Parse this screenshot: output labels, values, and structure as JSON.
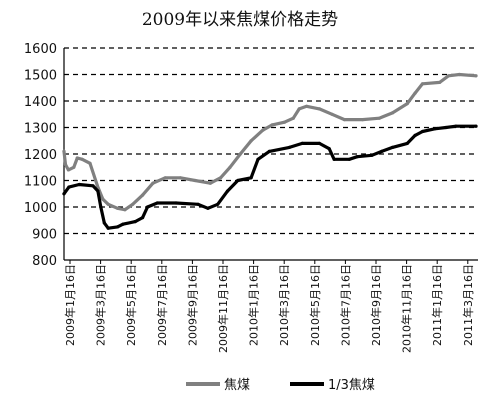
{
  "chart_data": {
    "type": "line",
    "title": "2009年以来焦煤价格走势",
    "ylim": [
      800,
      1600
    ],
    "yticks": [
      800,
      900,
      1000,
      1100,
      1200,
      1300,
      1400,
      1500,
      1600
    ],
    "grid": "horizontal-dashed",
    "legend_position": "bottom",
    "x_tick_labels": [
      "2009年1月16日",
      "2009年3月16日",
      "2009年5月16日",
      "2009年7月16日",
      "2009年9月16日",
      "2009年11月16日",
      "2010年1月16日",
      "2010年3月16日",
      "2010年5月16日",
      "2010年7月16日",
      "2010年9月16日",
      "2010年11月16日",
      "2011年1月16日",
      "2011年3月16日"
    ],
    "series": [
      {
        "name": "焦煤",
        "color": "#808080",
        "points": [
          [
            "2009-01-16",
            1210
          ],
          [
            "2009-01-19",
            1160
          ],
          [
            "2009-01-25",
            1140
          ],
          [
            "2009-02-05",
            1150
          ],
          [
            "2009-02-12",
            1185
          ],
          [
            "2009-02-22",
            1180
          ],
          [
            "2009-03-10",
            1165
          ],
          [
            "2009-03-25",
            1080
          ],
          [
            "2009-04-05",
            1030
          ],
          [
            "2009-04-16",
            1010
          ],
          [
            "2009-05-05",
            995
          ],
          [
            "2009-05-20",
            990
          ],
          [
            "2009-06-05",
            1010
          ],
          [
            "2009-06-25",
            1045
          ],
          [
            "2009-07-16",
            1090
          ],
          [
            "2009-08-10",
            1110
          ],
          [
            "2009-09-10",
            1110
          ],
          [
            "2009-10-10",
            1100
          ],
          [
            "2009-11-10",
            1090
          ],
          [
            "2009-12-01",
            1110
          ],
          [
            "2009-12-20",
            1150
          ],
          [
            "2010-01-10",
            1200
          ],
          [
            "2010-02-01",
            1250
          ],
          [
            "2010-02-25",
            1290
          ],
          [
            "2010-03-16",
            1310
          ],
          [
            "2010-04-10",
            1320
          ],
          [
            "2010-04-28",
            1335
          ],
          [
            "2010-05-10",
            1370
          ],
          [
            "2010-05-25",
            1380
          ],
          [
            "2010-06-20",
            1370
          ],
          [
            "2010-07-16",
            1350
          ],
          [
            "2010-08-10",
            1330
          ],
          [
            "2010-09-16",
            1330
          ],
          [
            "2010-10-20",
            1335
          ],
          [
            "2010-11-16",
            1355
          ],
          [
            "2010-12-16",
            1390
          ],
          [
            "2011-01-01",
            1430
          ],
          [
            "2011-01-16",
            1465
          ],
          [
            "2011-02-20",
            1470
          ],
          [
            "2011-03-10",
            1495
          ],
          [
            "2011-04-01",
            1500
          ],
          [
            "2011-05-05",
            1495
          ]
        ]
      },
      {
        "name": "1/3焦煤",
        "color": "#000000",
        "points": [
          [
            "2009-01-16",
            1050
          ],
          [
            "2009-01-26",
            1075
          ],
          [
            "2009-02-16",
            1085
          ],
          [
            "2009-03-16",
            1080
          ],
          [
            "2009-03-26",
            1060
          ],
          [
            "2009-04-01",
            1000
          ],
          [
            "2009-04-08",
            940
          ],
          [
            "2009-04-16",
            920
          ],
          [
            "2009-05-05",
            925
          ],
          [
            "2009-05-16",
            935
          ],
          [
            "2009-06-10",
            945
          ],
          [
            "2009-06-25",
            960
          ],
          [
            "2009-07-05",
            1000
          ],
          [
            "2009-07-25",
            1015
          ],
          [
            "2009-09-01",
            1015
          ],
          [
            "2009-10-16",
            1010
          ],
          [
            "2009-11-05",
            995
          ],
          [
            "2009-11-25",
            1010
          ],
          [
            "2009-12-15",
            1060
          ],
          [
            "2010-01-05",
            1100
          ],
          [
            "2010-02-01",
            1110
          ],
          [
            "2010-02-15",
            1180
          ],
          [
            "2010-03-10",
            1210
          ],
          [
            "2010-04-20",
            1225
          ],
          [
            "2010-05-16",
            1240
          ],
          [
            "2010-06-20",
            1240
          ],
          [
            "2010-07-10",
            1220
          ],
          [
            "2010-07-20",
            1180
          ],
          [
            "2010-08-20",
            1180
          ],
          [
            "2010-09-05",
            1190
          ],
          [
            "2010-10-05",
            1195
          ],
          [
            "2010-10-25",
            1210
          ],
          [
            "2010-11-16",
            1225
          ],
          [
            "2010-12-16",
            1240
          ],
          [
            "2011-01-01",
            1270
          ],
          [
            "2011-01-16",
            1285
          ],
          [
            "2011-02-10",
            1295
          ],
          [
            "2011-03-05",
            1300
          ],
          [
            "2011-03-25",
            1305
          ],
          [
            "2011-05-05",
            1305
          ]
        ]
      }
    ]
  }
}
